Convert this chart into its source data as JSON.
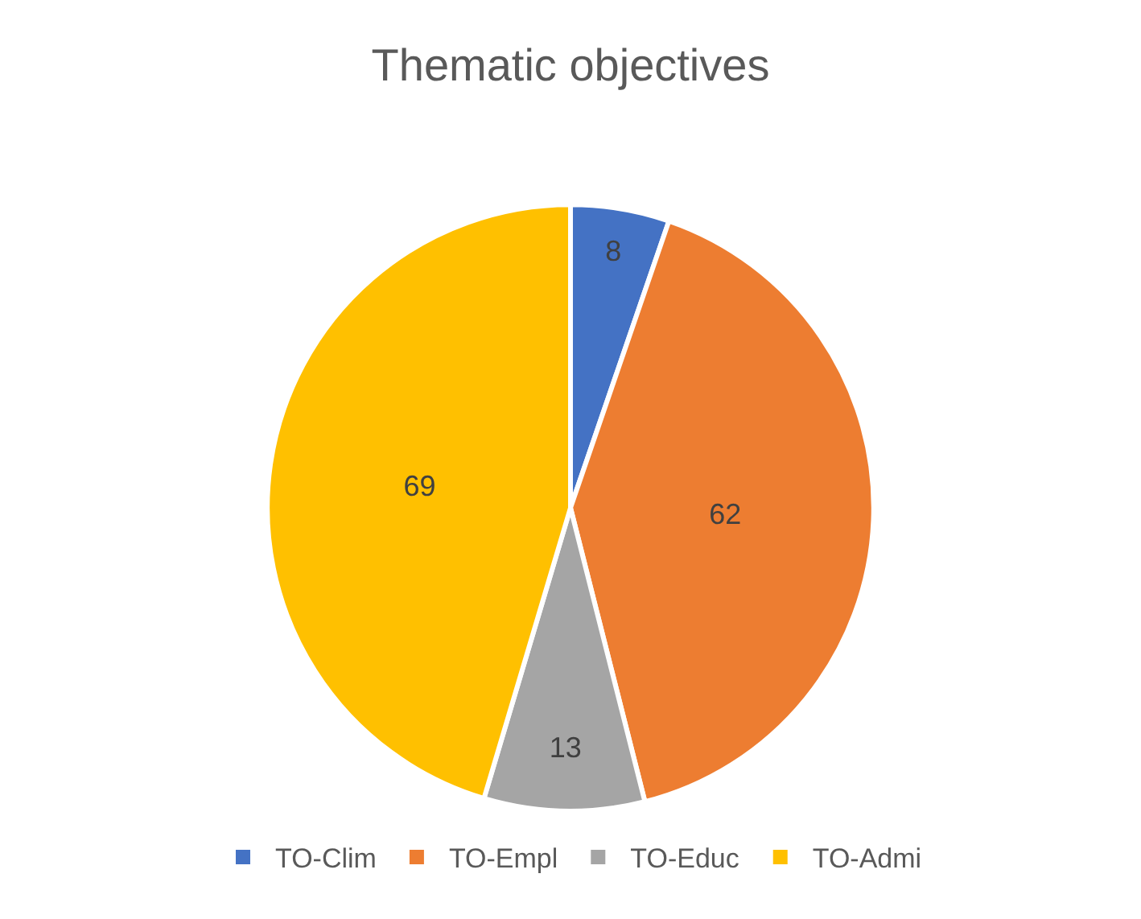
{
  "chart_data": {
    "type": "pie",
    "title": "Thematic objectives",
    "categories": [
      "TO-Clim",
      "TO-Empl",
      "TO-Educ",
      "TO-Admi"
    ],
    "values": [
      8,
      62,
      13,
      69
    ],
    "colors": [
      "#4472c4",
      "#ed7d31",
      "#a5a5a5",
      "#ffc000"
    ],
    "data_labels": true,
    "legend": "bottom"
  }
}
